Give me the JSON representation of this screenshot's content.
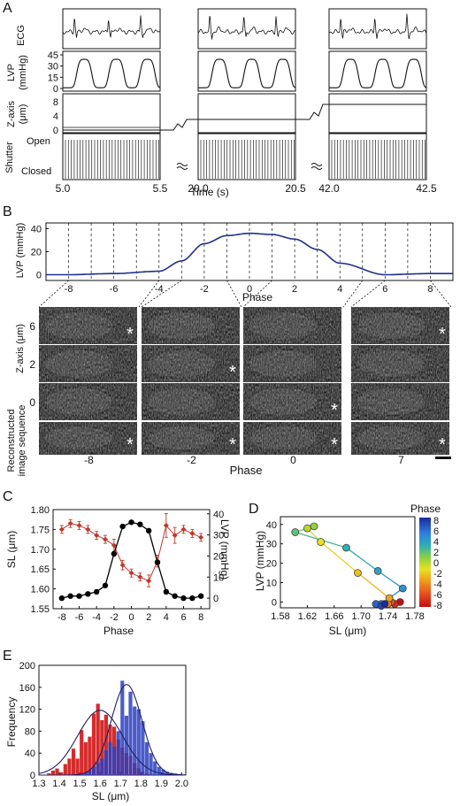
{
  "panels": {
    "a": {
      "letter": "A",
      "row_labels": {
        "ecg": "ECG",
        "lvp": "LVP",
        "lvp_unit": "(mmHg)",
        "z": "Z-axis",
        "z_unit": "(μm)",
        "shutter": "Shutter",
        "open": "Open",
        "closed": "Closed"
      },
      "lvp_ticks": [
        "45",
        "30",
        "15",
        "0"
      ],
      "z_ticks": [
        "8",
        "4",
        "0"
      ],
      "time_ticks": [
        "5.0",
        "5.5",
        "20.0",
        "20.5",
        "42.0",
        "42.5"
      ],
      "xlabel": "Time (s)"
    },
    "b": {
      "letter": "B",
      "ylabel": "LVP (mmHg)",
      "y_ticks": [
        "40",
        "20",
        "0"
      ],
      "phase_ticks": [
        "-8",
        "-6",
        "-4",
        "-2",
        "0",
        "2",
        "4",
        "6",
        "8"
      ],
      "xlabel": "Phase",
      "z_label": "Z-axis (μm)",
      "z_ticks": [
        "6",
        "2",
        "0"
      ],
      "recon_label_1": "Reconstructed",
      "recon_label_2": "image sequence",
      "image_phases": [
        "-8",
        "-2",
        "0",
        "7"
      ],
      "image_xlabel": "Phase",
      "star": "*"
    },
    "c": {
      "letter": "C",
      "ylabel_left": "SL (μm)",
      "ylabel_right": "LVP (mmHg)",
      "xlabel": "Phase",
      "left_ticks": [
        "1.80",
        "1.75",
        "1.70",
        "1.65",
        "1.60",
        "1.55"
      ],
      "right_ticks": [
        "40",
        "30",
        "20",
        "10",
        "0"
      ],
      "x_ticks": [
        "-8",
        "-6",
        "-4",
        "-2",
        "0",
        "2",
        "4",
        "6",
        "8"
      ]
    },
    "d": {
      "letter": "D",
      "ylabel": "LVP (mmHg)",
      "xlabel": "SL (μm)",
      "y_ticks": [
        "40",
        "30",
        "20",
        "10",
        "0"
      ],
      "x_ticks": [
        "1.58",
        "1.62",
        "1.66",
        "1.70",
        "1.74",
        "1.78"
      ],
      "colorbar_title": "Phase",
      "colorbar_ticks": [
        "8",
        "6",
        "4",
        "2",
        "0",
        "-2",
        "-4",
        "-6",
        "-8"
      ]
    },
    "e": {
      "letter": "E",
      "ylabel": "Frequency",
      "xlabel": "SL (μm)",
      "y_ticks": [
        "200",
        "160",
        "120",
        "80",
        "40",
        "0"
      ],
      "x_ticks": [
        "1.3",
        "1.4",
        "1.5",
        "1.6",
        "1.7",
        "1.8",
        "1.9",
        "2.0"
      ]
    }
  },
  "colors": {
    "lvp_line": "#1f2f8f",
    "sl_black": "#000000",
    "lvp_red": "#c0392b",
    "hist_red": "#d32020",
    "hist_blue": "#2b3fbf",
    "fit_line": "#202060"
  },
  "chart_data": [
    {
      "type": "line",
      "title": "",
      "xlabel": "Phase",
      "ylabel": "LVP (mmHg)",
      "x": [
        -8,
        -6,
        -4,
        -3,
        -2,
        -1,
        0,
        1,
        2,
        3,
        4,
        6,
        8
      ],
      "series": [
        {
          "values": [
            0,
            1,
            3,
            12,
            27,
            34,
            36,
            35,
            31,
            22,
            10,
            0,
            1
          ]
        }
      ],
      "ylim": [
        -5,
        45
      ],
      "xlim": [
        -9,
        9
      ]
    },
    {
      "type": "line",
      "xlabel": "Phase",
      "ylabel": "SL (μm)",
      "x": [
        -8,
        -7,
        -6,
        -5,
        -4,
        -3,
        -2,
        -1,
        0,
        1,
        2,
        3,
        4,
        5,
        6,
        7,
        8
      ],
      "series": [
        {
          "name": "SL",
          "axis": "left",
          "values": [
            1.75,
            1.765,
            1.76,
            1.75,
            1.735,
            1.725,
            1.71,
            1.66,
            1.64,
            1.63,
            1.62,
            1.67,
            1.76,
            1.735,
            1.75,
            1.74,
            1.73
          ],
          "error": [
            0.01,
            0.01,
            0.01,
            0.01,
            0.01,
            0.01,
            0.015,
            0.012,
            0.01,
            0.01,
            0.015,
            0.015,
            0.03,
            0.02,
            0.01,
            0.01,
            0.01
          ]
        },
        {
          "name": "LVP",
          "axis": "right",
          "values": [
            0,
            1,
            1,
            2,
            3,
            6,
            21,
            34,
            36,
            35,
            32,
            17,
            3,
            1,
            0,
            0,
            1
          ]
        }
      ],
      "ylim_left": [
        1.55,
        1.8
      ],
      "ylim_right": [
        -5,
        42
      ]
    },
    {
      "type": "scatter",
      "xlabel": "SL (μm)",
      "ylabel": "LVP (mmHg)",
      "xlim": [
        1.58,
        1.78
      ],
      "ylim": [
        -3,
        44
      ],
      "points": [
        {
          "phase": -8,
          "x": 1.758,
          "y": 0
        },
        {
          "phase": -7,
          "x": 1.75,
          "y": -1
        },
        {
          "phase": -6,
          "x": 1.745,
          "y": 0
        },
        {
          "phase": -5,
          "x": 1.74,
          "y": -1
        },
        {
          "phase": -4,
          "x": 1.742,
          "y": 2
        },
        {
          "phase": -3,
          "x": 1.695,
          "y": 15
        },
        {
          "phase": -2,
          "x": 1.64,
          "y": 31
        },
        {
          "phase": -1,
          "x": 1.62,
          "y": 38
        },
        {
          "phase": 0,
          "x": 1.63,
          "y": 39
        },
        {
          "phase": 1,
          "x": 1.602,
          "y": 36
        },
        {
          "phase": 2,
          "x": 1.678,
          "y": 28
        },
        {
          "phase": 3,
          "x": 1.725,
          "y": 16
        },
        {
          "phase": 4,
          "x": 1.762,
          "y": 7
        },
        {
          "phase": 5,
          "x": 1.73,
          "y": -1
        },
        {
          "phase": 6,
          "x": 1.722,
          "y": -1
        },
        {
          "phase": 7,
          "x": 1.73,
          "y": -2
        },
        {
          "phase": 8,
          "x": 1.735,
          "y": -1
        }
      ]
    },
    {
      "type": "bar",
      "xlabel": "SL (μm)",
      "ylabel": "Frequency",
      "xlim": [
        1.3,
        2.02
      ],
      "ylim": [
        0,
        200
      ],
      "bin_width": 0.02,
      "series": [
        {
          "color": "red",
          "bins_start": [
            1.34,
            1.36,
            1.38,
            1.4,
            1.42,
            1.44,
            1.46,
            1.48,
            1.5,
            1.52,
            1.54,
            1.56,
            1.58,
            1.6,
            1.62,
            1.64,
            1.66,
            1.68,
            1.7,
            1.72,
            1.74,
            1.76,
            1.78,
            1.8,
            1.82
          ],
          "values": [
            3,
            8,
            12,
            5,
            20,
            30,
            48,
            30,
            82,
            60,
            70,
            112,
            130,
            100,
            110,
            92,
            88,
            65,
            50,
            40,
            35,
            22,
            12,
            6,
            3
          ]
        },
        {
          "color": "blue",
          "bins_start": [
            1.5,
            1.52,
            1.54,
            1.56,
            1.58,
            1.6,
            1.62,
            1.64,
            1.66,
            1.68,
            1.7,
            1.72,
            1.74,
            1.76,
            1.78,
            1.8,
            1.82,
            1.84,
            1.86,
            1.88,
            1.9,
            1.92,
            1.94,
            1.96,
            1.98
          ],
          "values": [
            2,
            4,
            8,
            15,
            22,
            30,
            45,
            60,
            52,
            80,
            172,
            108,
            152,
            125,
            120,
            98,
            60,
            40,
            25,
            15,
            10,
            6,
            4,
            3,
            2
          ]
        }
      ],
      "fits": [
        {
          "color": "red",
          "mean": 1.6,
          "sd": 0.11,
          "peak": 118
        },
        {
          "color": "blue",
          "mean": 1.73,
          "sd": 0.075,
          "peak": 165
        }
      ]
    }
  ]
}
